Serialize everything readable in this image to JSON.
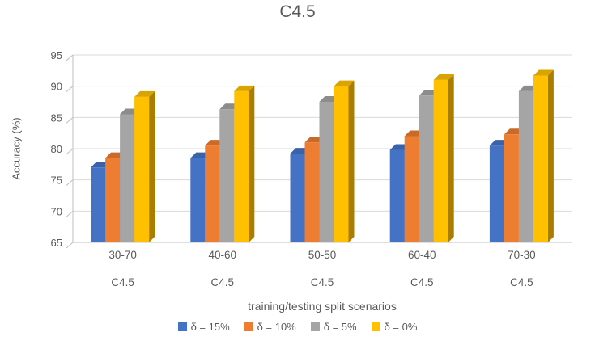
{
  "chart_data": {
    "type": "bar",
    "title": "C4.5",
    "xlabel": "training/testing split scenarios",
    "ylabel": "Accuracy (%)",
    "ylim": [
      65,
      95
    ],
    "ytick_step": 5,
    "grid": true,
    "legend_position": "bottom",
    "style_3d": true,
    "categories": [
      "30-70",
      "40-60",
      "50-50",
      "60-40",
      "70-30"
    ],
    "category_sublabel": "C4.5",
    "series": [
      {
        "name": "δ = 15%",
        "color": "#4472C4",
        "top_color": "#3A62A8",
        "side_color": "#2E4F86",
        "values": [
          77.0,
          78.5,
          79.2,
          79.8,
          80.5
        ]
      },
      {
        "name": "δ = 10%",
        "color": "#ED7D31",
        "top_color": "#C96A29",
        "side_color": "#9E5321",
        "values": [
          78.5,
          80.5,
          81.0,
          82.0,
          82.3
        ]
      },
      {
        "name": "δ = 5%",
        "color": "#A5A5A5",
        "top_color": "#8C8C8C",
        "side_color": "#6E6E6E",
        "values": [
          85.5,
          86.3,
          87.5,
          88.5,
          89.2
        ]
      },
      {
        "name": "δ = 0%",
        "color": "#FFC000",
        "top_color": "#D9A300",
        "side_color": "#A97D00",
        "values": [
          88.3,
          89.2,
          90.0,
          91.0,
          91.7
        ]
      }
    ],
    "axis_color": "#BFBFBF",
    "gridline_color": "#D9D9D9"
  }
}
